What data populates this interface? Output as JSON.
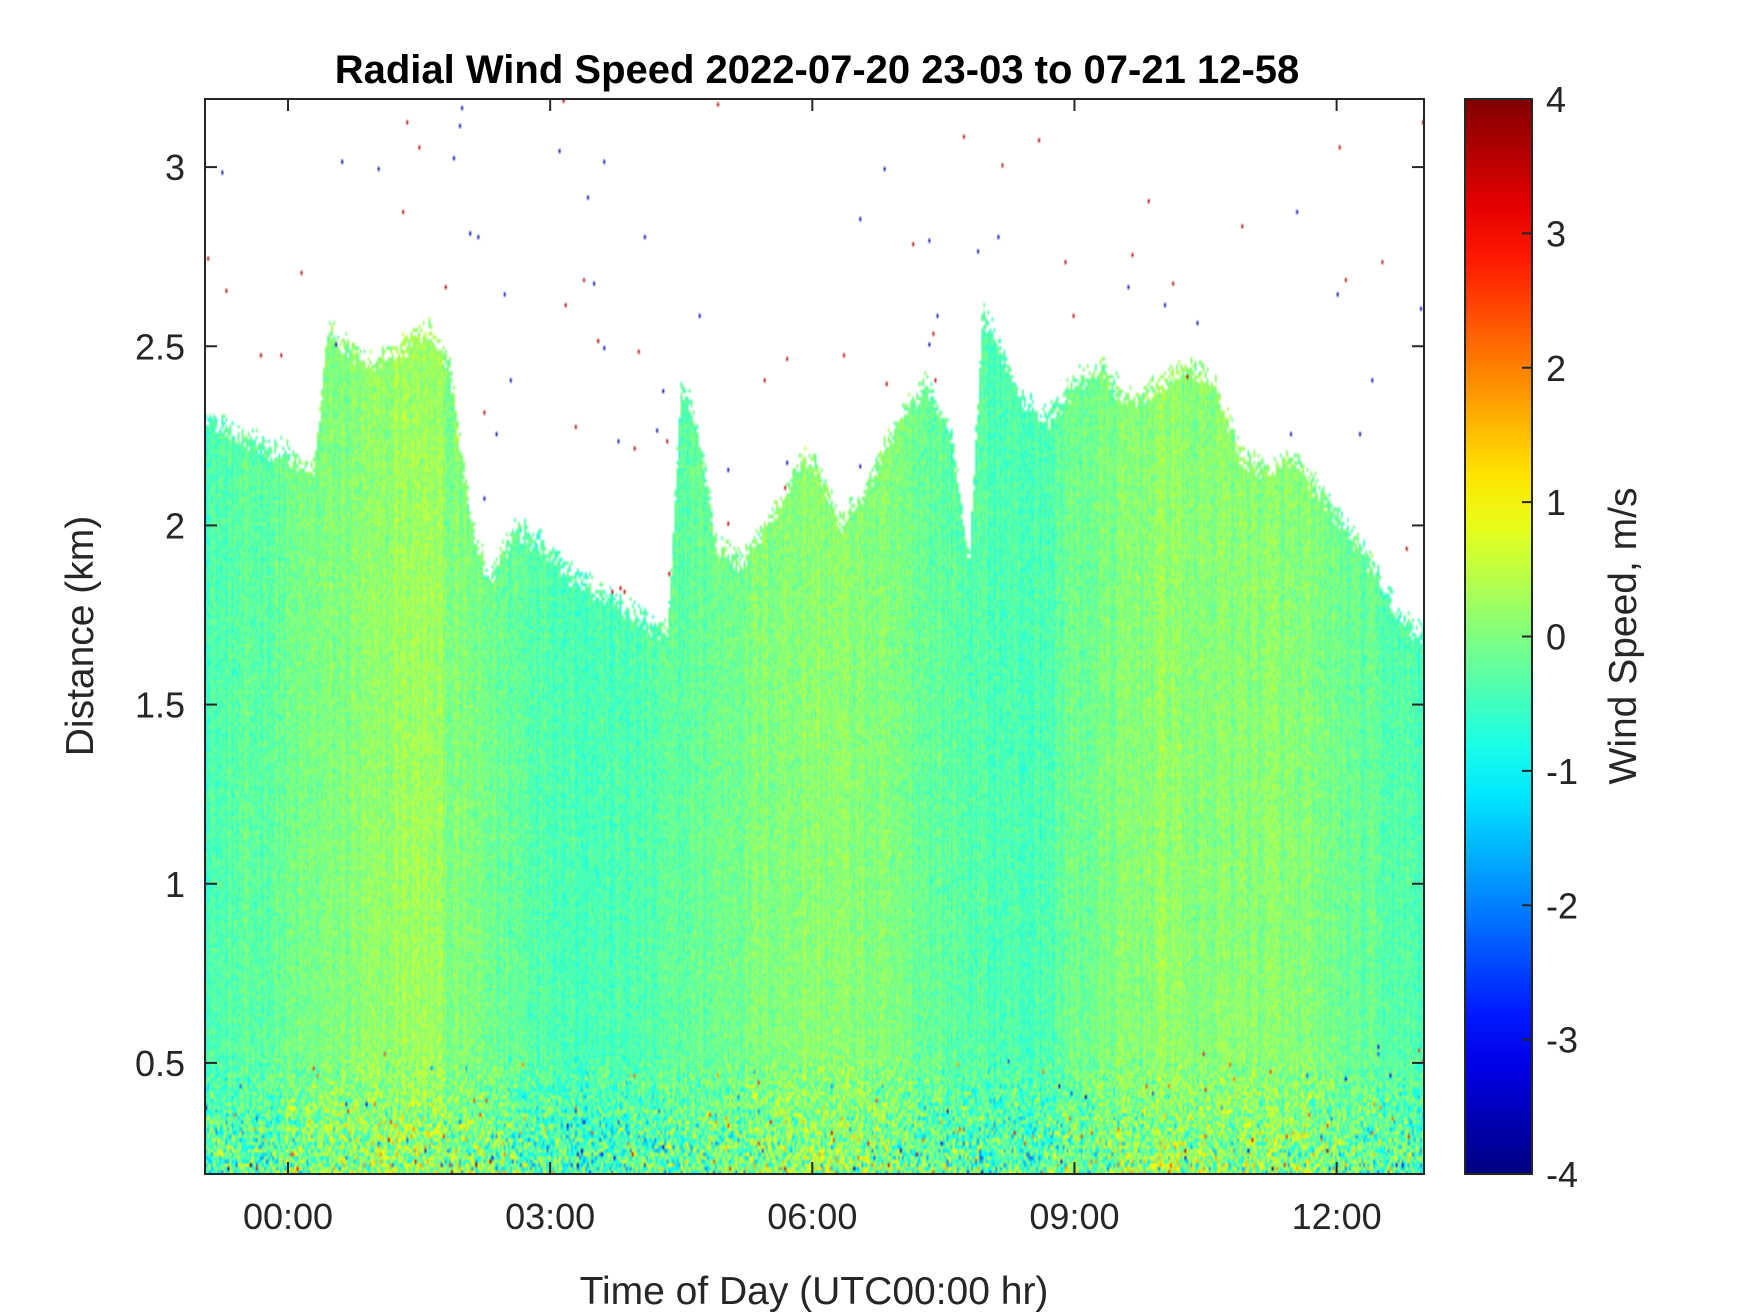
{
  "chart_data": {
    "type": "heatmap",
    "title": "Radial Wind Speed 2022-07-20 23-03 to 07-21 12-58",
    "xlabel": "Time of Day (UTC00:00 hr)",
    "ylabel": "Distance (km)",
    "colorbar_label": "Wind Speed, m/s",
    "colormap": "jet",
    "xlim_hours": [
      -0.95,
      13.0
    ],
    "ylim_km": [
      0.19,
      3.19
    ],
    "clim": [
      -4,
      4
    ],
    "x_ticks": [
      {
        "value": 0,
        "label": "00:00"
      },
      {
        "value": 3,
        "label": "03:00"
      },
      {
        "value": 6,
        "label": "06:00"
      },
      {
        "value": 9,
        "label": "09:00"
      },
      {
        "value": 12,
        "label": "12:00"
      }
    ],
    "y_ticks": [
      {
        "value": 0.5,
        "label": "0.5"
      },
      {
        "value": 1,
        "label": "1"
      },
      {
        "value": 1.5,
        "label": "1.5"
      },
      {
        "value": 2,
        "label": "2"
      },
      {
        "value": 2.5,
        "label": "2.5"
      },
      {
        "value": 3,
        "label": "3"
      }
    ],
    "colorbar_ticks": [
      {
        "value": 4,
        "label": "4"
      },
      {
        "value": 3,
        "label": "3"
      },
      {
        "value": 2,
        "label": "2"
      },
      {
        "value": 1,
        "label": "1"
      },
      {
        "value": 0,
        "label": "0"
      },
      {
        "value": -1,
        "label": "-1"
      },
      {
        "value": -2,
        "label": "-2"
      },
      {
        "value": -3,
        "label": "-3"
      },
      {
        "value": -4,
        "label": "-4"
      }
    ],
    "coverage_top_km": {
      "hours": [
        -0.95,
        -0.5,
        0.0,
        0.3,
        0.45,
        0.9,
        1.3,
        1.6,
        1.85,
        2.1,
        2.3,
        2.6,
        2.9,
        3.3,
        3.7,
        4.0,
        4.35,
        4.5,
        4.6,
        4.75,
        4.9,
        5.2,
        5.6,
        5.9,
        6.1,
        6.3,
        6.6,
        7.0,
        7.3,
        7.6,
        7.8,
        7.95,
        8.15,
        8.4,
        8.7,
        9.0,
        9.3,
        9.6,
        10.0,
        10.3,
        10.6,
        10.9,
        11.2,
        11.5,
        11.8,
        12.1,
        12.4,
        12.7,
        13.0
      ],
      "top_km": [
        2.3,
        2.25,
        2.2,
        2.15,
        2.55,
        2.45,
        2.5,
        2.55,
        2.45,
        2.0,
        1.85,
        2.0,
        1.95,
        1.85,
        1.8,
        1.75,
        1.7,
        2.4,
        2.35,
        2.2,
        1.95,
        1.9,
        2.05,
        2.2,
        2.15,
        2.0,
        2.1,
        2.3,
        2.4,
        2.25,
        1.9,
        2.6,
        2.5,
        2.35,
        2.3,
        2.4,
        2.45,
        2.35,
        2.4,
        2.45,
        2.4,
        2.2,
        2.15,
        2.2,
        2.1,
        2.0,
        1.9,
        1.75,
        1.7
      ]
    }
  }
}
